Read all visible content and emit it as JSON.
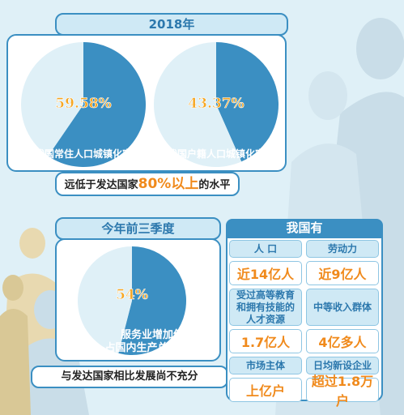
{
  "colors": {
    "pie_dark": "#3b8fc2",
    "pie_light": "#dff0f7",
    "accent": "#f08a1c",
    "border": "#3b8fc2"
  },
  "top": {
    "year": "2018年",
    "note_before": "远低于发达国家",
    "note_accent": "80%以上",
    "note_after": "的水平"
  },
  "middle": {
    "period": "今年前三季度",
    "note": "与发达国家相比发展尚不充分"
  },
  "grid": {
    "title": "我国有",
    "rows": [
      {
        "left": "人 口",
        "right": "劳动力",
        "kind": "label"
      },
      {
        "left": "近14亿人",
        "right": "近9亿人",
        "kind": "value"
      },
      {
        "left": "受过高等教育和拥有技能的人才资源",
        "right": "中等收入群体",
        "kind": "label"
      },
      {
        "left": "1.7亿人",
        "right": "4亿多人",
        "kind": "value"
      },
      {
        "left": "市场主体",
        "right": "日均新设企业",
        "kind": "label"
      },
      {
        "left": "上亿户",
        "right": "超过1.8万户",
        "kind": "value"
      }
    ]
  },
  "chart_data": [
    {
      "type": "pie",
      "title": "",
      "slices": [
        {
          "name": "我国常住人口城镇化率",
          "value": 59.58
        },
        {
          "name": "",
          "value": 40.42
        }
      ],
      "value_label": "59.58%",
      "caption": "我国常住人口城镇化率"
    },
    {
      "type": "pie",
      "title": "",
      "slices": [
        {
          "name": "我国户籍人口城镇化率",
          "value": 43.37
        },
        {
          "name": "",
          "value": 56.63
        }
      ],
      "value_label": "43.37%",
      "caption": "我国户籍人口城镇化率"
    },
    {
      "type": "pie",
      "title": "",
      "slices": [
        {
          "name": "服务业增加值占国内生产总值比重",
          "value": 54
        },
        {
          "name": "",
          "value": 46
        }
      ],
      "value_label": "54%",
      "caption_line1": "服务业增加值",
      "caption_line2": "占国内生产总值比重"
    }
  ]
}
